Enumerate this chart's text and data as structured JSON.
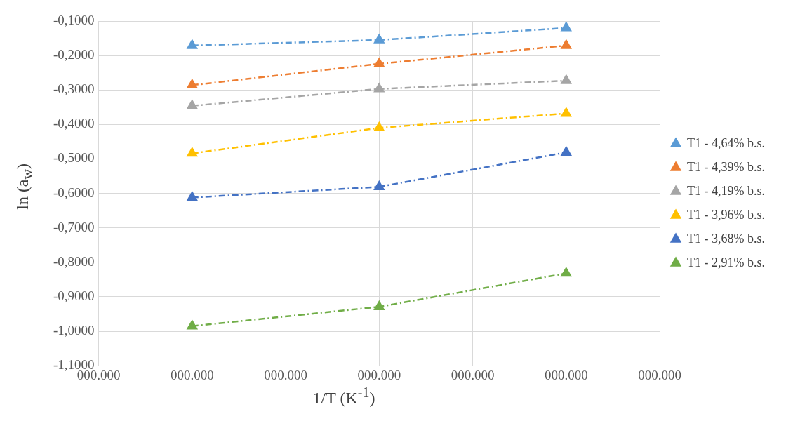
{
  "chart_data": {
    "type": "line",
    "xlabel": "1/T (K$^{-1}$)",
    "ylabel": "ln (a$_{w}$)",
    "categories": [
      "000.000",
      "000.000",
      "000.000",
      "000.000",
      "000.000",
      "000.000",
      "000.000"
    ],
    "ylim": [
      -1.1,
      -0.1
    ],
    "yticks": [
      {
        "value": -1.1,
        "label": "-1,1000"
      },
      {
        "value": -1.0,
        "label": "-1,0000"
      },
      {
        "value": -0.9,
        "label": "-0,9000"
      },
      {
        "value": -0.8,
        "label": "-0,8000"
      },
      {
        "value": -0.7,
        "label": "-0,7000"
      },
      {
        "value": -0.6,
        "label": "-0,6000"
      },
      {
        "value": -0.5,
        "label": "-0,5000"
      },
      {
        "value": -0.4,
        "label": "-0,4000"
      },
      {
        "value": -0.3,
        "label": "-0,3000"
      },
      {
        "value": -0.2,
        "label": "-0,2000"
      },
      {
        "value": -0.1,
        "label": "-0,1000"
      }
    ],
    "series": [
      {
        "name": "T1 - 4,64% b.s.",
        "color": "#5b9bd5",
        "values": [
          null,
          -0.171,
          null,
          -0.155,
          null,
          -0.12,
          null
        ]
      },
      {
        "name": "T1 - 4,39% b.s.",
        "color": "#ed7d31",
        "values": [
          null,
          -0.286,
          null,
          -0.224,
          null,
          -0.171,
          null
        ]
      },
      {
        "name": "T1 - 4,19% b.s.",
        "color": "#a5a5a5",
        "values": [
          null,
          -0.346,
          null,
          -0.297,
          null,
          -0.273,
          null
        ]
      },
      {
        "name": "T1 - 3,96% b.s.",
        "color": "#ffc000",
        "values": [
          null,
          -0.484,
          null,
          -0.41,
          null,
          -0.368,
          null
        ]
      },
      {
        "name": "T1 - 3,68% b.s.",
        "color": "#4472c4",
        "values": [
          null,
          -0.612,
          null,
          -0.581,
          null,
          -0.481,
          null
        ]
      },
      {
        "name": "T1 - 2,91% b.s.",
        "color": "#70ad47",
        "values": [
          null,
          -0.985,
          null,
          -0.929,
          null,
          -0.832,
          null
        ]
      }
    ],
    "grid": true,
    "legend": "right",
    "marker": "triangle",
    "line_style": "dashed"
  }
}
